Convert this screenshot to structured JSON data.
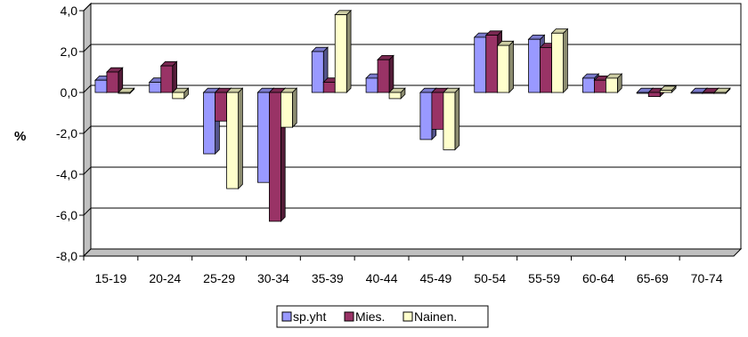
{
  "chart_data": {
    "type": "bar",
    "ylabel": "%",
    "ylim": [
      -8,
      4
    ],
    "yticks": [
      "4,0",
      "2,0",
      "0,0",
      "-2,0",
      "-4,0",
      "-6,0",
      "-8,0"
    ],
    "ytick_values": [
      4,
      2,
      0,
      -2,
      -4,
      -6,
      -8
    ],
    "grid": true,
    "style": "3d-column",
    "legend_position": "bottom",
    "categories": [
      "15-19",
      "20-24",
      "25-29",
      "30-34",
      "35-39",
      "40-44",
      "45-49",
      "50-54",
      "55-59",
      "60-64",
      "65-69",
      "70-74"
    ],
    "series": [
      {
        "name": "sp.yht",
        "color": "#9999ff",
        "values": [
          0.6,
          0.5,
          -3.0,
          -4.4,
          2.0,
          0.7,
          -2.3,
          2.7,
          2.6,
          0.7,
          0.0,
          0.0
        ]
      },
      {
        "name": "Mies.",
        "color": "#993366",
        "values": [
          1.0,
          1.3,
          -1.4,
          -6.3,
          0.5,
          1.6,
          -1.8,
          2.8,
          2.2,
          0.6,
          -0.2,
          0.0
        ]
      },
      {
        "name": "Nainen.",
        "color": "#ffffcc",
        "values": [
          0.0,
          -0.3,
          -4.7,
          -1.7,
          3.8,
          -0.3,
          -2.8,
          2.3,
          2.9,
          0.7,
          0.1,
          0.0
        ]
      }
    ]
  }
}
